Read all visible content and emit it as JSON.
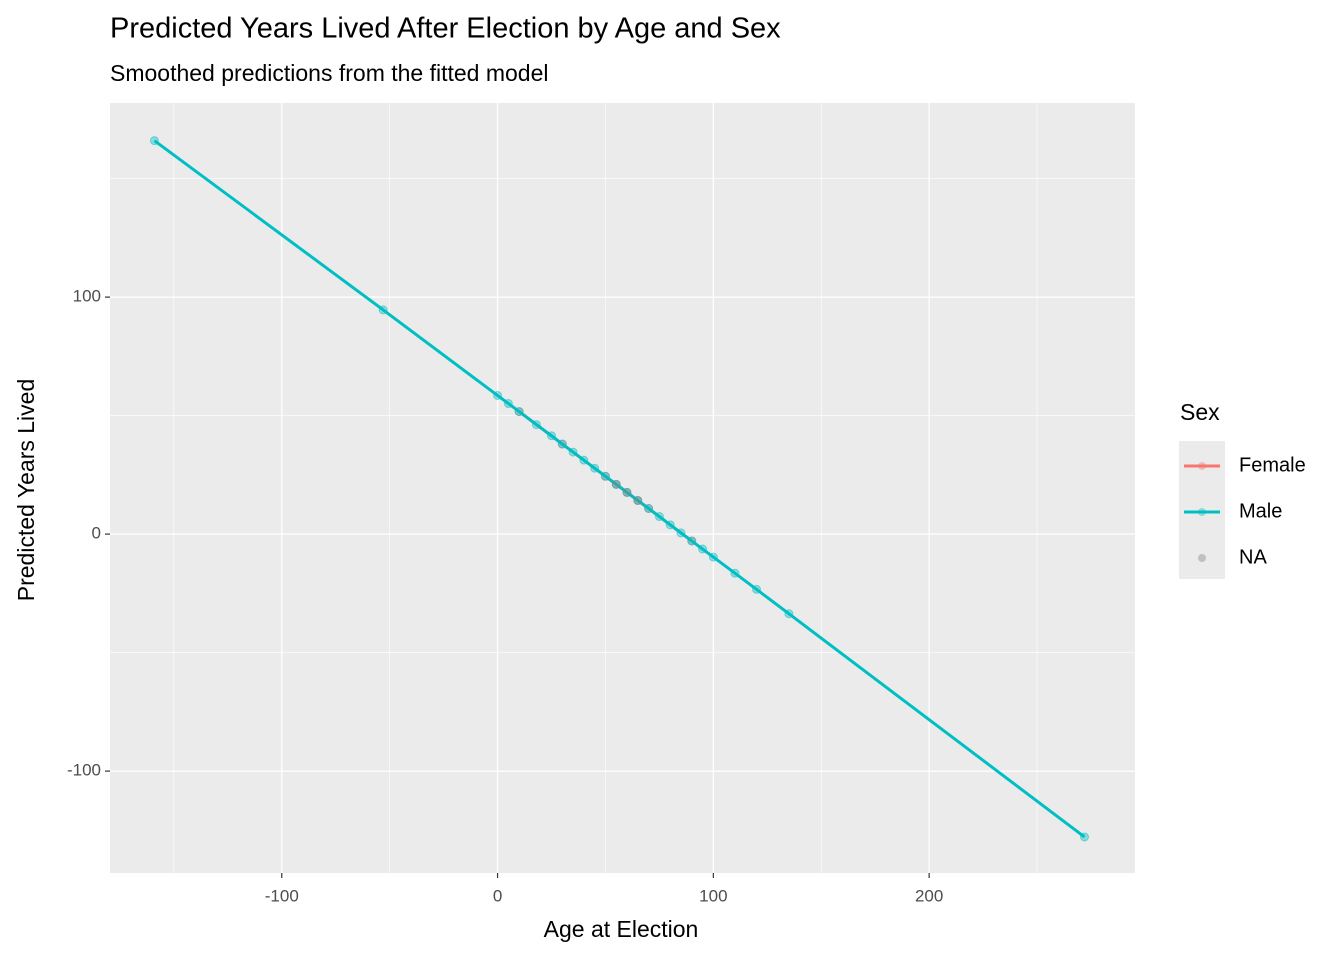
{
  "chart_data": {
    "type": "line_scatter",
    "title": "Predicted Years Lived After Election by Age and Sex",
    "subtitle": "Smoothed predictions from the fitted model",
    "x_label": "Age at Election",
    "y_label": "Predicted Years Lived",
    "xlim": [
      -179.6,
      295.4
    ],
    "ylim": [
      -143,
      181.9
    ],
    "xticks": [
      -100,
      0,
      100,
      200
    ],
    "yticks": [
      -100,
      0,
      100
    ],
    "xminor": [
      -150,
      -50,
      50,
      150,
      250
    ],
    "yminor": [
      -50,
      50,
      150
    ],
    "grid": true,
    "legend_title": "Sex",
    "legend_position": "right",
    "series": [
      {
        "name": "Female",
        "color": "#F8766D",
        "line": true,
        "x": [
          10,
          30,
          50,
          70,
          90
        ],
        "values": [
          51.7,
          38.0,
          24.4,
          10.8,
          -2.9
        ]
      },
      {
        "name": "Male",
        "color": "#00BFC4",
        "line": true,
        "x": [
          -159,
          -53,
          0,
          5,
          10,
          18,
          25,
          30,
          35,
          40,
          45,
          50,
          55,
          60,
          65,
          70,
          75,
          80,
          85,
          90,
          95,
          100,
          110,
          120,
          135,
          272
        ],
        "values": [
          166,
          94.6,
          58.5,
          55.1,
          51.7,
          46.2,
          41.5,
          38.0,
          34.6,
          31.2,
          27.8,
          24.4,
          21.0,
          17.6,
          14.2,
          10.8,
          7.4,
          3.9,
          0.5,
          -2.9,
          -6.3,
          -9.7,
          -16.5,
          -23.3,
          -33.6,
          -127.8
        ]
      },
      {
        "name": "NA",
        "color": "#7f7f7f",
        "line": false,
        "x": [
          55,
          60,
          65
        ],
        "values": [
          21.0,
          17.6,
          14.2
        ]
      }
    ]
  }
}
